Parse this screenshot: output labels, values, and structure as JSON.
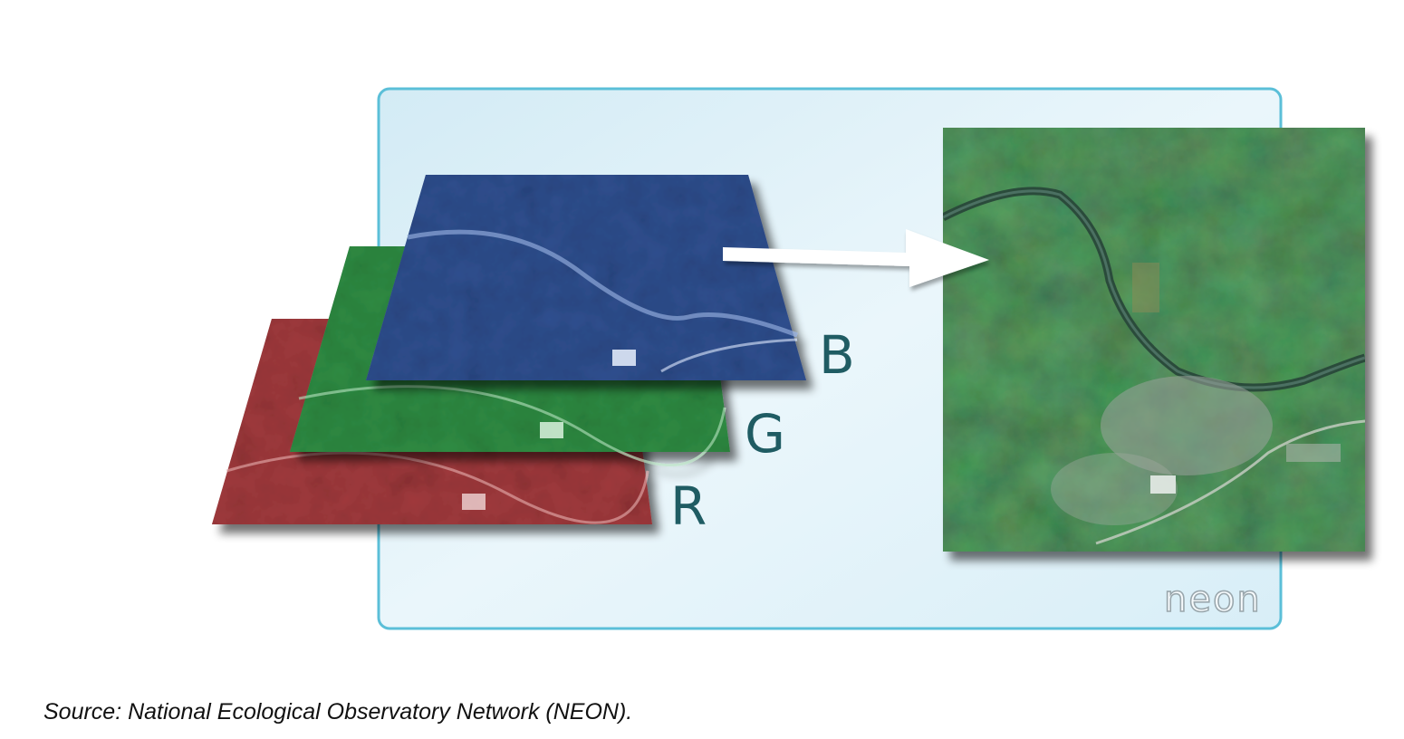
{
  "layers": [
    {
      "label": "R",
      "color": "#a13a3d"
    },
    {
      "label": "G",
      "color": "#2f8c43"
    },
    {
      "label": "B",
      "color": "#2f4f8f"
    }
  ],
  "logo": "neon",
  "caption": "Source: National Ecological Observatory Network (NEON).",
  "colors": {
    "panel_fill": "#e6f3f9",
    "panel_border": "#5bbfd8",
    "label": "#1f5c63",
    "arrow": "#ffffff"
  }
}
